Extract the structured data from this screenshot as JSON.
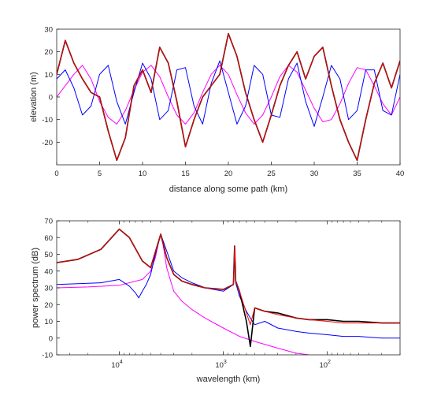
{
  "chart_data": [
    {
      "type": "line",
      "title": "",
      "xlabel": "distance along some path (km)",
      "ylabel": "elevation (m)",
      "xlim": [
        0,
        40
      ],
      "ylim": [
        -30,
        30
      ],
      "xticks": [
        0,
        5,
        10,
        15,
        20,
        25,
        30,
        35,
        40
      ],
      "yticks": [
        -20,
        -10,
        0,
        10,
        20,
        30
      ],
      "grid": false,
      "series": [
        {
          "color": "#ff00ff",
          "x": [
            0,
            1,
            2,
            3,
            4,
            5,
            6,
            7,
            8,
            9,
            10,
            11,
            12,
            13,
            14,
            15,
            16,
            17,
            18,
            19,
            20,
            21,
            22,
            23,
            24,
            25,
            26,
            27,
            28,
            29,
            30,
            31,
            32,
            33,
            34,
            35,
            36,
            37,
            38,
            39,
            40
          ],
          "y": [
            0,
            5,
            10,
            14,
            8,
            -2,
            -9,
            -12,
            -6,
            3,
            11,
            14,
            9,
            0,
            -8,
            -12,
            -7,
            2,
            10,
            14,
            10,
            1,
            -7,
            -12,
            -8,
            0,
            9,
            14,
            11,
            3,
            -5,
            -11,
            -10,
            -3,
            6,
            13,
            12,
            5,
            -3,
            -8,
            0
          ]
        },
        {
          "color": "#0000ff",
          "x": [
            0,
            1,
            2,
            3,
            4,
            5,
            6,
            7,
            8,
            9,
            10,
            11,
            12,
            13,
            14,
            15,
            16,
            17,
            18,
            19,
            20,
            21,
            22,
            23,
            24,
            25,
            26,
            27,
            28,
            29,
            30,
            31,
            32,
            33,
            34,
            35,
            36,
            37,
            38,
            39,
            40
          ],
          "y": [
            8,
            12,
            4,
            -8,
            -4,
            10,
            14,
            -2,
            -12,
            2,
            15,
            8,
            -10,
            -6,
            12,
            13,
            -4,
            -12,
            6,
            16,
            2,
            -12,
            -4,
            14,
            10,
            -8,
            -9,
            8,
            15,
            -2,
            -13,
            0,
            14,
            8,
            -10,
            -6,
            12,
            12,
            -6,
            -8,
            10
          ]
        },
        {
          "color": "#000000",
          "x": [
            0,
            1,
            2,
            3,
            4,
            5,
            6,
            7,
            8,
            9,
            10,
            11,
            12,
            13,
            14,
            15,
            16,
            17,
            18,
            19,
            20,
            21,
            22,
            23,
            24,
            25,
            26,
            27,
            28,
            29,
            30,
            31,
            32,
            33,
            34,
            35,
            36,
            37,
            38,
            39,
            40
          ],
          "y": [
            10,
            25,
            15,
            8,
            2,
            0,
            -15,
            -28,
            -18,
            5,
            12,
            2,
            22,
            15,
            -2,
            -22,
            -10,
            0,
            5,
            10,
            28,
            18,
            2,
            -10,
            -20,
            -8,
            5,
            14,
            20,
            8,
            18,
            22,
            5,
            -10,
            -20,
            -28,
            -10,
            6,
            15,
            4,
            16
          ]
        },
        {
          "color": "#ff0000",
          "x": [
            0,
            1,
            2,
            3,
            4,
            5,
            6,
            7,
            8,
            9,
            10,
            11,
            12,
            13,
            14,
            15,
            16,
            17,
            18,
            19,
            20,
            21,
            22,
            23,
            24,
            25,
            26,
            27,
            28,
            29,
            30,
            31,
            32,
            33,
            34,
            35,
            36,
            37,
            38,
            39,
            40
          ],
          "y": [
            10,
            25,
            15,
            8,
            2,
            0,
            -15,
            -28,
            -18,
            5,
            12,
            2,
            22,
            15,
            -2,
            -22,
            -10,
            0,
            5,
            10,
            28,
            18,
            2,
            -10,
            -20,
            -8,
            5,
            14,
            20,
            8,
            18,
            22,
            5,
            -10,
            -20,
            -28,
            -10,
            6,
            15,
            4,
            16
          ]
        }
      ]
    },
    {
      "type": "line",
      "title": "",
      "xlabel": "wavelength (km)",
      "ylabel": "power spectrum (dB)",
      "xscale": "log-reciprocal",
      "xlim": [
        40000,
        20
      ],
      "ylim": [
        -10,
        70
      ],
      "xticks": [
        10000,
        1000,
        100
      ],
      "xticklabels": [
        "10^4",
        "10^3",
        "10^2"
      ],
      "yticks": [
        -10,
        0,
        10,
        20,
        30,
        40,
        50,
        60,
        70
      ],
      "grid": false,
      "series": [
        {
          "color": "#ff00ff",
          "x": [
            40000,
            20000,
            10000,
            6000,
            5000,
            4500,
            4200,
            4000,
            3800,
            3500,
            3000,
            2500,
            2000,
            1500,
            1000,
            700,
            500,
            300,
            200,
            150
          ],
          "y": [
            30,
            30.5,
            31.5,
            35,
            40,
            48,
            57,
            62,
            56,
            42,
            28,
            22,
            17,
            12,
            6,
            1,
            -2,
            -6,
            -9,
            -10
          ]
        },
        {
          "color": "#0000ff",
          "x": [
            40000,
            25000,
            15000,
            10000,
            8000,
            7000,
            6500,
            6000,
            5500,
            5000,
            4500,
            4000,
            3500,
            3000,
            2500,
            2000,
            1500,
            1000,
            800,
            780,
            760,
            700,
            600,
            550,
            500,
            400,
            300,
            200,
            150,
            100,
            70,
            50,
            30,
            20
          ],
          "y": [
            32,
            32.5,
            33,
            35,
            31,
            27,
            24,
            28,
            32,
            38,
            50,
            62,
            52,
            40,
            36,
            33,
            30,
            28,
            32,
            55,
            33,
            25,
            16,
            12,
            8,
            10,
            6,
            4,
            3,
            2,
            1,
            1,
            0,
            0
          ]
        },
        {
          "color": "#000000",
          "x": [
            40000,
            25000,
            15000,
            10000,
            8000,
            6000,
            5000,
            4000,
            3500,
            3000,
            2500,
            2000,
            1500,
            1000,
            800,
            780,
            760,
            700,
            600,
            550,
            500,
            400,
            300,
            200,
            150,
            100,
            70,
            50,
            30,
            20
          ],
          "y": [
            45,
            47,
            53,
            65,
            60,
            46,
            42,
            62,
            48,
            38,
            34,
            32,
            30,
            29,
            32,
            55,
            34,
            28,
            10,
            -5,
            18,
            16,
            15,
            12,
            11,
            11,
            10,
            10,
            9,
            9
          ]
        },
        {
          "color": "#ff0000",
          "x": [
            40000,
            25000,
            15000,
            10000,
            8000,
            6000,
            5000,
            4000,
            3500,
            3000,
            2500,
            2000,
            1500,
            1000,
            800,
            780,
            760,
            700,
            600,
            550,
            500,
            400,
            300,
            200,
            150,
            100,
            70,
            50,
            30,
            20
          ],
          "y": [
            45,
            47,
            53,
            65,
            60,
            46,
            42,
            62,
            48,
            38,
            34,
            32,
            30,
            29,
            32,
            55,
            34,
            28,
            15,
            8,
            18,
            16,
            14,
            12,
            11,
            10,
            9,
            9,
            9,
            9
          ]
        }
      ]
    }
  ]
}
